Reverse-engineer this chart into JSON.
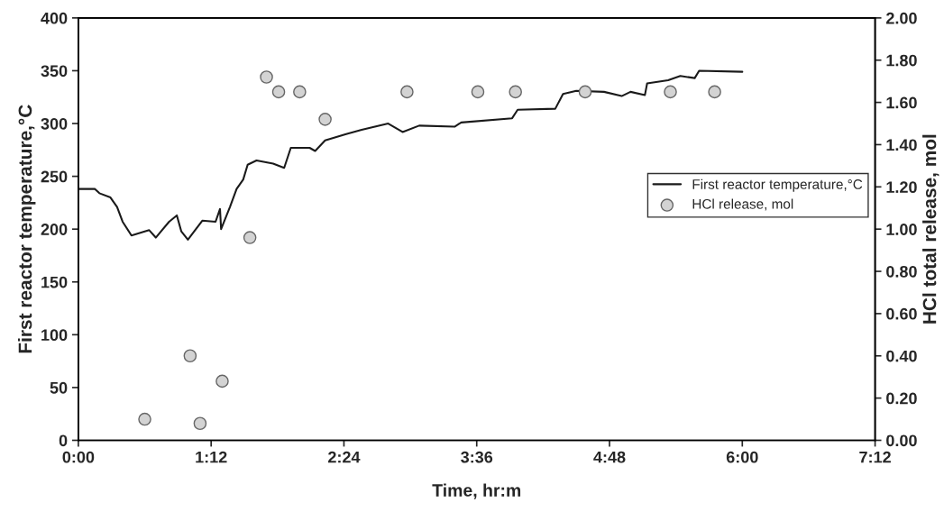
{
  "chart_data": {
    "type": "line",
    "xlabel": "Time, hr:m",
    "ylabel": "First reactor temperature,°C",
    "y2label": "HCl total release, mol",
    "xlim": [
      0,
      7.2
    ],
    "xticks": [
      {
        "value": 0,
        "label": "0:00"
      },
      {
        "value": 1.2,
        "label": "1:12"
      },
      {
        "value": 2.4,
        "label": "2:24"
      },
      {
        "value": 3.6,
        "label": "3:36"
      },
      {
        "value": 4.8,
        "label": "4:48"
      },
      {
        "value": 6.0,
        "label": "6:00"
      },
      {
        "value": 7.2,
        "label": "7:12"
      }
    ],
    "ylim": [
      0,
      400
    ],
    "yticks": [
      0,
      50,
      100,
      150,
      200,
      250,
      300,
      350,
      400
    ],
    "y2lim": [
      0,
      2
    ],
    "y2ticks": [
      {
        "value": 0,
        "label": "0.00"
      },
      {
        "value": 0.2,
        "label": "0.20"
      },
      {
        "value": 0.4,
        "label": "0.40"
      },
      {
        "value": 0.6,
        "label": "0.60"
      },
      {
        "value": 0.8,
        "label": "0.80"
      },
      {
        "value": 1.0,
        "label": "1.00"
      },
      {
        "value": 1.2,
        "label": "1.20"
      },
      {
        "value": 1.4,
        "label": "1.40"
      },
      {
        "value": 1.6,
        "label": "1.60"
      },
      {
        "value": 1.8,
        "label": "1.80"
      },
      {
        "value": 2.0,
        "label": "2.00"
      }
    ],
    "grid": false,
    "legend": "right",
    "series": [
      {
        "name": "First reactor temperature,°C",
        "color": "#1a1a1a",
        "marker": "none",
        "line_style": "solid",
        "x": [
          0,
          0.15,
          0.19,
          0.29,
          0.35,
          0.4,
          0.48,
          0.64,
          0.7,
          0.82,
          0.89,
          0.93,
          0.99,
          1.12,
          1.24,
          1.28,
          1.29,
          1.37,
          1.43,
          1.49,
          1.53,
          1.61,
          1.76,
          1.86,
          1.92,
          2.09,
          2.14,
          2.23,
          2.42,
          2.56,
          2.8,
          2.93,
          3.08,
          3.4,
          3.46,
          3.92,
          3.97,
          4.31,
          4.38,
          4.5,
          4.75,
          4.91,
          4.99,
          5.12,
          5.14,
          5.33,
          5.44,
          5.57,
          5.61,
          6.0
        ],
        "values": [
          238,
          238,
          234,
          230,
          221,
          207,
          194,
          199,
          192,
          207,
          213,
          198,
          190,
          208,
          207,
          219,
          200,
          221,
          238,
          247,
          261,
          265,
          262,
          258,
          277,
          277,
          274,
          284,
          290,
          294,
          300,
          292,
          298,
          297,
          301,
          305,
          313,
          314,
          328,
          331,
          330,
          326,
          330,
          327,
          338,
          341,
          345,
          343,
          350,
          349
        ]
      },
      {
        "name": "HCl release, mol",
        "type": "scatter",
        "axis": "y2",
        "color": "#d3d3d3",
        "marker": "circle",
        "x": [
          0.6,
          1.01,
          1.1,
          1.3,
          1.55,
          1.7,
          1.81,
          2.0,
          2.23,
          2.97,
          3.61,
          3.95,
          4.58,
          5.35,
          5.75
        ],
        "values": [
          0.1,
          0.4,
          0.08,
          0.28,
          0.96,
          1.72,
          1.65,
          1.65,
          1.52,
          1.65,
          1.65,
          1.65,
          1.65,
          1.65,
          1.65
        ]
      }
    ]
  }
}
